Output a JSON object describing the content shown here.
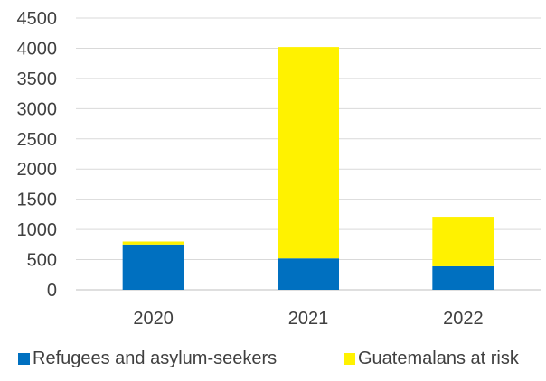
{
  "chart_data": {
    "type": "bar",
    "stacked": true,
    "categories": [
      "2020",
      "2021",
      "2022"
    ],
    "series": [
      {
        "name": "Refugees and asylum-seekers",
        "values": [
          750,
          520,
          390
        ],
        "color": "#0070C0"
      },
      {
        "name": "Guatemalans at risk",
        "values": [
          50,
          3500,
          820
        ],
        "color": "#FFF200"
      }
    ],
    "ylim": [
      0,
      4500
    ],
    "yticks": [
      "0",
      "500",
      "1000",
      "1500",
      "2000",
      "2500",
      "3000",
      "3500",
      "4000",
      "4500"
    ],
    "grid": true,
    "legend": "bottom"
  }
}
